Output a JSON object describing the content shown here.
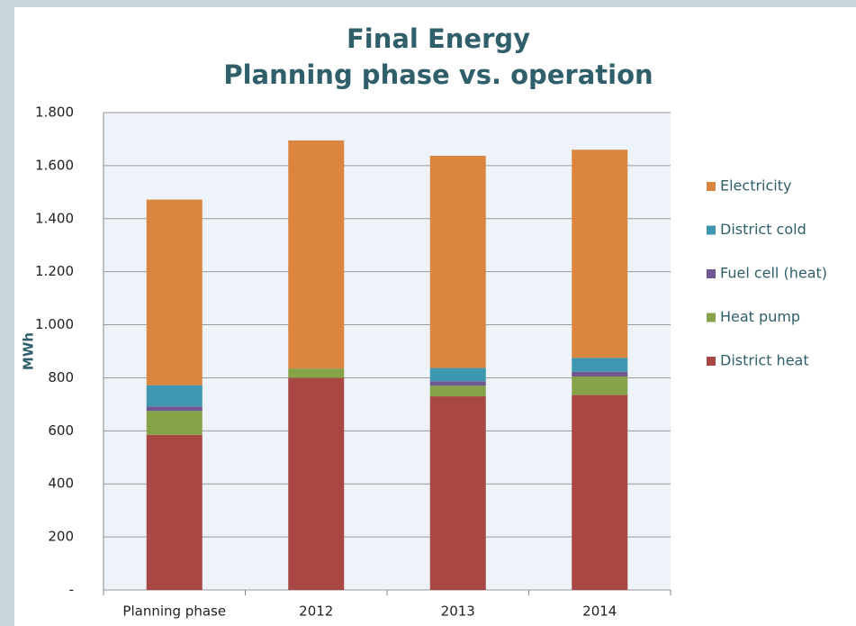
{
  "chart_data": {
    "type": "stacked_bar",
    "title": "Final Energy",
    "subtitle": "Planning phase vs. operation",
    "y_label": "MWh",
    "categories": [
      "Planning phase",
      "2012",
      "2013",
      "2014"
    ],
    "series": [
      {
        "name": "District heat",
        "color": "#a94744",
        "values": [
          585,
          800,
          730,
          735
        ]
      },
      {
        "name": "Heat pump",
        "color": "#86a34a",
        "values": [
          90,
          35,
          40,
          70
        ]
      },
      {
        "name": "Fuel cell (heat)",
        "color": "#6f5791",
        "values": [
          17,
          0,
          17,
          18
        ]
      },
      {
        "name": "District cold",
        "color": "#3e97b0",
        "values": [
          80,
          0,
          50,
          52
        ]
      },
      {
        "name": "Electricity",
        "color": "#da8640",
        "values": [
          700,
          860,
          800,
          785
        ]
      }
    ],
    "ylim": [
      0,
      1800
    ],
    "yticks": [
      {
        "value": 0,
        "label": "-"
      },
      200,
      400,
      600,
      800,
      {
        "value": 1000,
        "label": "1.000"
      },
      {
        "value": 1200,
        "label": "1.200"
      },
      {
        "value": 1400,
        "label": "1.400"
      },
      {
        "value": 1600,
        "label": "1.600"
      },
      {
        "value": 1800,
        "label": "1.800"
      }
    ],
    "grid": true,
    "legend": "right"
  }
}
